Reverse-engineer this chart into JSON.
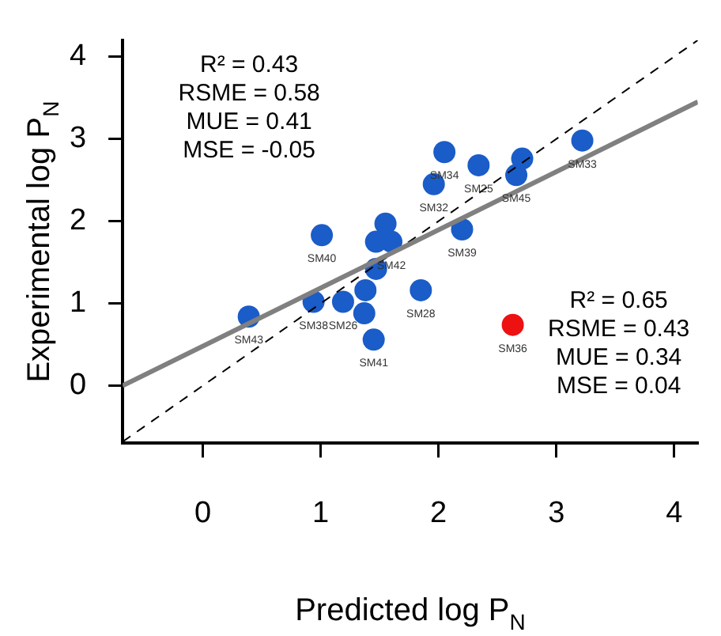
{
  "chart_data": {
    "type": "scatter",
    "xlabel": "Predicted log P$_{N}$",
    "ylabel": "Experimental log P$_{N}$",
    "xlim": [
      -0.68,
      4.2
    ],
    "ylim": [
      -0.7,
      4.2
    ],
    "xticks": [
      0,
      1,
      2,
      3,
      4
    ],
    "yticks": [
      0,
      1,
      2,
      3,
      4
    ],
    "grid": false,
    "legend": false,
    "marker": "circle",
    "series": [
      {
        "type": "line",
        "color": "#808080",
        "marker": "none",
        "x": [
          -0.68,
          4.2
        ],
        "values": [
          0,
          3.45
        ]
      },
      {
        "type": "line",
        "color": "#000000",
        "marker": "none",
        "line_style": "dashed",
        "x": [
          -0.68,
          4.2
        ],
        "values": [
          -0.68,
          4.2
        ]
      },
      {
        "color": "#1a5cc8",
        "x": [
          3.22,
          2.71,
          2.66,
          2.34,
          2.05,
          1.96,
          2.2,
          1.01,
          1.55,
          1.6,
          1.47,
          1.47,
          1.85,
          1.38,
          1.37,
          1.45,
          1.19,
          0.94,
          0.39
        ],
        "values": [
          2.98,
          2.76,
          2.56,
          2.68,
          2.84,
          2.45,
          1.9,
          1.83,
          1.97,
          1.75,
          1.75,
          1.42,
          1.16,
          1.16,
          0.88,
          0.56,
          1.02,
          1.02,
          0.84
        ]
      },
      {
        "color": "#ee1111",
        "x": [
          2.63
        ],
        "values": [
          0.74
        ]
      }
    ],
    "annotations": [
      "R² = 0.43\nRSME = 0.58\nMUE = 0.41\nMSE = -0.05",
      "R² = 0.65\nRSME = 0.43\nMUE = 0.34\nMSE = 0.04",
      {
        "text": "SM33",
        "x": 3.22,
        "y": 2.98
      },
      {
        "text": "SM45",
        "x": 2.66,
        "y": 2.56
      },
      {
        "text": "SM25",
        "x": 2.34,
        "y": 2.68
      },
      {
        "text": "SM34",
        "x": 2.05,
        "y": 2.84
      },
      {
        "text": "SM32",
        "x": 1.96,
        "y": 2.45
      },
      {
        "text": "SM39",
        "x": 2.2,
        "y": 1.9
      },
      {
        "text": "SM40",
        "x": 1.01,
        "y": 1.83
      },
      {
        "text": "SM42",
        "x": 1.6,
        "y": 1.75
      },
      {
        "text": "SM28",
        "x": 1.85,
        "y": 1.16
      },
      {
        "text": "SM41",
        "x": 1.45,
        "y": 0.56
      },
      {
        "text": "SM26",
        "x": 1.19,
        "y": 1.02
      },
      {
        "text": "SM38",
        "x": 0.94,
        "y": 1.02
      },
      {
        "text": "SM43",
        "x": 0.39,
        "y": 0.84
      },
      {
        "text": "SM36",
        "x": 2.63,
        "y": 0.74
      }
    ]
  }
}
